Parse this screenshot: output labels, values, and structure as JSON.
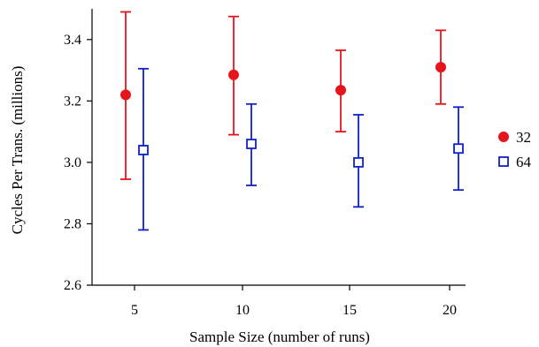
{
  "chart_data": {
    "type": "scatter",
    "title": "",
    "xlabel": "Sample Size (number of runs)",
    "ylabel": "Cycles Per Trans. (millions)",
    "categories": [
      "5",
      "10",
      "15",
      "20"
    ],
    "ylim": [
      2.6,
      3.5
    ],
    "yticks": [
      "2.6",
      "2.8",
      "3.0",
      "3.2",
      "3.4"
    ],
    "grid": false,
    "legend_position": "right",
    "series": [
      {
        "name": "32",
        "color": "#e8141b",
        "marker": "filled-circle",
        "values": [
          3.22,
          3.285,
          3.235,
          3.31
        ],
        "lower": [
          2.945,
          3.09,
          3.1,
          3.19
        ],
        "upper": [
          3.49,
          3.475,
          3.365,
          3.43
        ]
      },
      {
        "name": "64",
        "color": "#1020c8",
        "marker": "open-square",
        "values": [
          3.04,
          3.06,
          3.0,
          3.045
        ],
        "lower": [
          2.78,
          2.925,
          2.855,
          2.91
        ],
        "upper": [
          3.305,
          3.19,
          3.155,
          3.18
        ]
      }
    ]
  }
}
